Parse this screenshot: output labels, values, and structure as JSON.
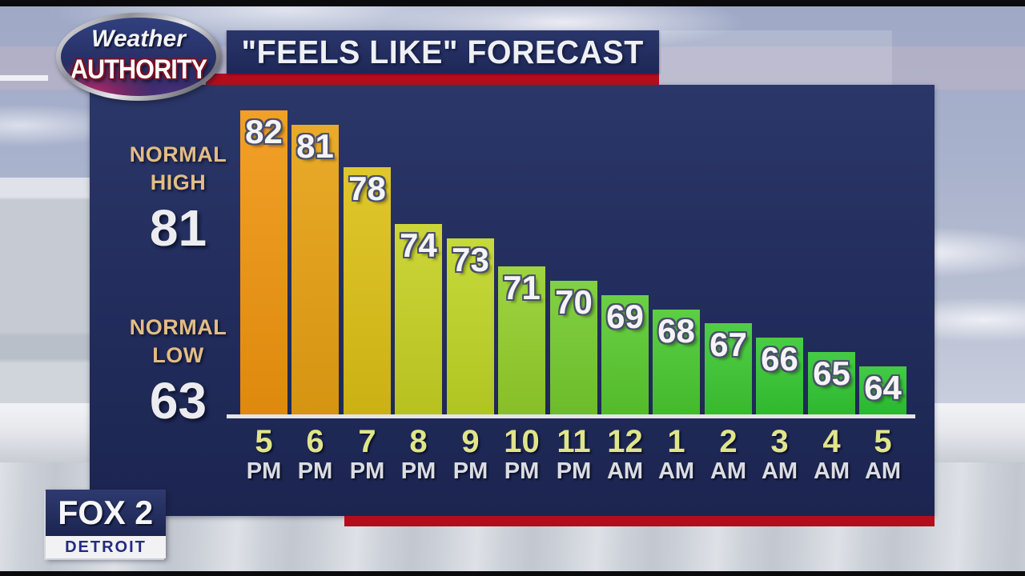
{
  "header": {
    "title": "\"FEELS LIKE\" FORECAST"
  },
  "logo": {
    "top": "Weather",
    "bottom": "AUTHORITY"
  },
  "station": {
    "name": "FOX 2",
    "city": "DETROIT"
  },
  "chart_data": {
    "type": "bar",
    "title": "\"FEELS LIKE\" FORECAST",
    "categories": [
      "5 PM",
      "6 PM",
      "7 PM",
      "8 PM",
      "9 PM",
      "10 PM",
      "11 PM",
      "12 AM",
      "1 AM",
      "2 AM",
      "3 AM",
      "4 AM",
      "5 AM"
    ],
    "x_labels": [
      {
        "hour": "5",
        "period": "PM"
      },
      {
        "hour": "6",
        "period": "PM"
      },
      {
        "hour": "7",
        "period": "PM"
      },
      {
        "hour": "8",
        "period": "PM"
      },
      {
        "hour": "9",
        "period": "PM"
      },
      {
        "hour": "10",
        "period": "PM"
      },
      {
        "hour": "11",
        "period": "PM"
      },
      {
        "hour": "12",
        "period": "AM"
      },
      {
        "hour": "1",
        "period": "AM"
      },
      {
        "hour": "2",
        "period": "AM"
      },
      {
        "hour": "3",
        "period": "AM"
      },
      {
        "hour": "4",
        "period": "AM"
      },
      {
        "hour": "5",
        "period": "AM"
      }
    ],
    "values": [
      82,
      81,
      78,
      74,
      73,
      71,
      70,
      69,
      68,
      67,
      66,
      65,
      64
    ],
    "bar_colors": [
      "#f0950f",
      "#e7a112",
      "#dcc014",
      "#c6d122",
      "#bfd524",
      "#93cf2b",
      "#74cb2e",
      "#5aca2f",
      "#49c930",
      "#3dc831",
      "#35c731",
      "#30c632",
      "#2dc532"
    ],
    "ylim": [
      60.5,
      84
    ],
    "grid": false,
    "legend": false,
    "annotations": {
      "normal_high_label": "NORMAL HIGH",
      "normal_high_value": "81",
      "normal_low_label": "NORMAL LOW",
      "normal_low_value": "63"
    }
  }
}
